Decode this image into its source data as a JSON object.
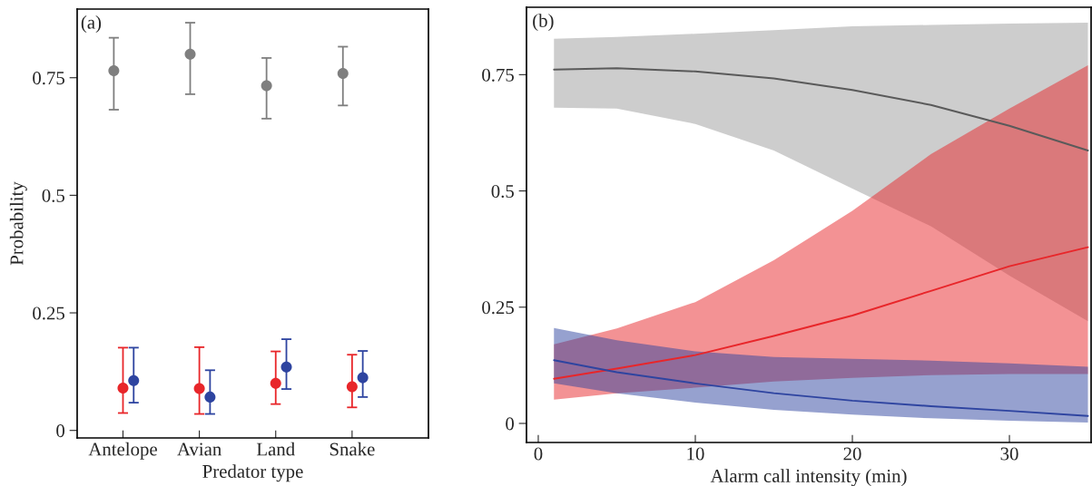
{
  "chart_data": [
    {
      "type": "scatter",
      "title": "(a)",
      "xlabel": "Predator type",
      "ylabel": "Probability",
      "categories": [
        "Antelope",
        "Avian",
        "Land",
        "Snake"
      ],
      "ylim": [
        -0.016,
        0.896
      ],
      "yticks": [
        0,
        0.25,
        0.5,
        0.75
      ],
      "grid": false,
      "marker": "circle",
      "series": [
        {
          "color": "#7f7f7f",
          "values": [
            0.765,
            0.8,
            0.733,
            0.759
          ],
          "errors": [
            [
              0.682,
              0.835
            ],
            [
              0.715,
              0.867
            ],
            [
              0.663,
              0.792
            ],
            [
              0.691,
              0.816
            ]
          ]
        },
        {
          "color": "#e8262a",
          "values": [
            0.09,
            0.089,
            0.1,
            0.093
          ],
          "errors": [
            [
              0.037,
              0.176
            ],
            [
              0.035,
              0.177
            ],
            [
              0.056,
              0.168
            ],
            [
              0.049,
              0.161
            ]
          ]
        },
        {
          "color": "#2e44a0",
          "values": [
            0.106,
            0.071,
            0.135,
            0.112
          ],
          "errors": [
            [
              0.059,
              0.176
            ],
            [
              0.035,
              0.128
            ],
            [
              0.088,
              0.194
            ],
            [
              0.071,
              0.169
            ]
          ]
        }
      ]
    },
    {
      "type": "line",
      "title": "(b)",
      "xlabel": "Alarm call intensity (min)",
      "xlim": [
        -0.75,
        35.2
      ],
      "xticks": [
        0,
        10,
        20,
        30
      ],
      "ylim": [
        -0.041,
        0.895
      ],
      "yticks": [
        0,
        0.25,
        0.5,
        0.75
      ],
      "grid": false,
      "marker": "none",
      "line_style": "solid",
      "series": [
        {
          "color": "#5a5a5a",
          "x": [
            1,
            5,
            10,
            15,
            20,
            25,
            30,
            35
          ],
          "values": [
            0.761,
            0.764,
            0.757,
            0.742,
            0.717,
            0.685,
            0.64,
            0.587
          ],
          "lower": [
            0.679,
            0.677,
            0.644,
            0.587,
            0.505,
            0.424,
            0.318,
            0.22
          ],
          "upper": [
            0.827,
            0.831,
            0.838,
            0.846,
            0.854,
            0.857,
            0.86,
            0.862
          ]
        },
        {
          "color": "#e8262a",
          "x": [
            1,
            5,
            10,
            15,
            20,
            25,
            30,
            35
          ],
          "values": [
            0.096,
            0.118,
            0.147,
            0.188,
            0.232,
            0.285,
            0.338,
            0.379
          ],
          "lower": [
            0.051,
            0.065,
            0.077,
            0.09,
            0.098,
            0.104,
            0.106,
            0.106
          ],
          "upper": [
            0.17,
            0.204,
            0.261,
            0.351,
            0.457,
            0.579,
            0.677,
            0.77
          ]
        },
        {
          "color": "#2e44a0",
          "x": [
            1,
            5,
            10,
            15,
            20,
            25,
            30,
            35
          ],
          "values": [
            0.136,
            0.11,
            0.086,
            0.065,
            0.049,
            0.037,
            0.027,
            0.016
          ],
          "lower": [
            0.086,
            0.065,
            0.045,
            0.029,
            0.019,
            0.011,
            0.006,
            0.002
          ],
          "upper": [
            0.205,
            0.179,
            0.155,
            0.143,
            0.139,
            0.135,
            0.129,
            0.122
          ]
        }
      ]
    }
  ]
}
